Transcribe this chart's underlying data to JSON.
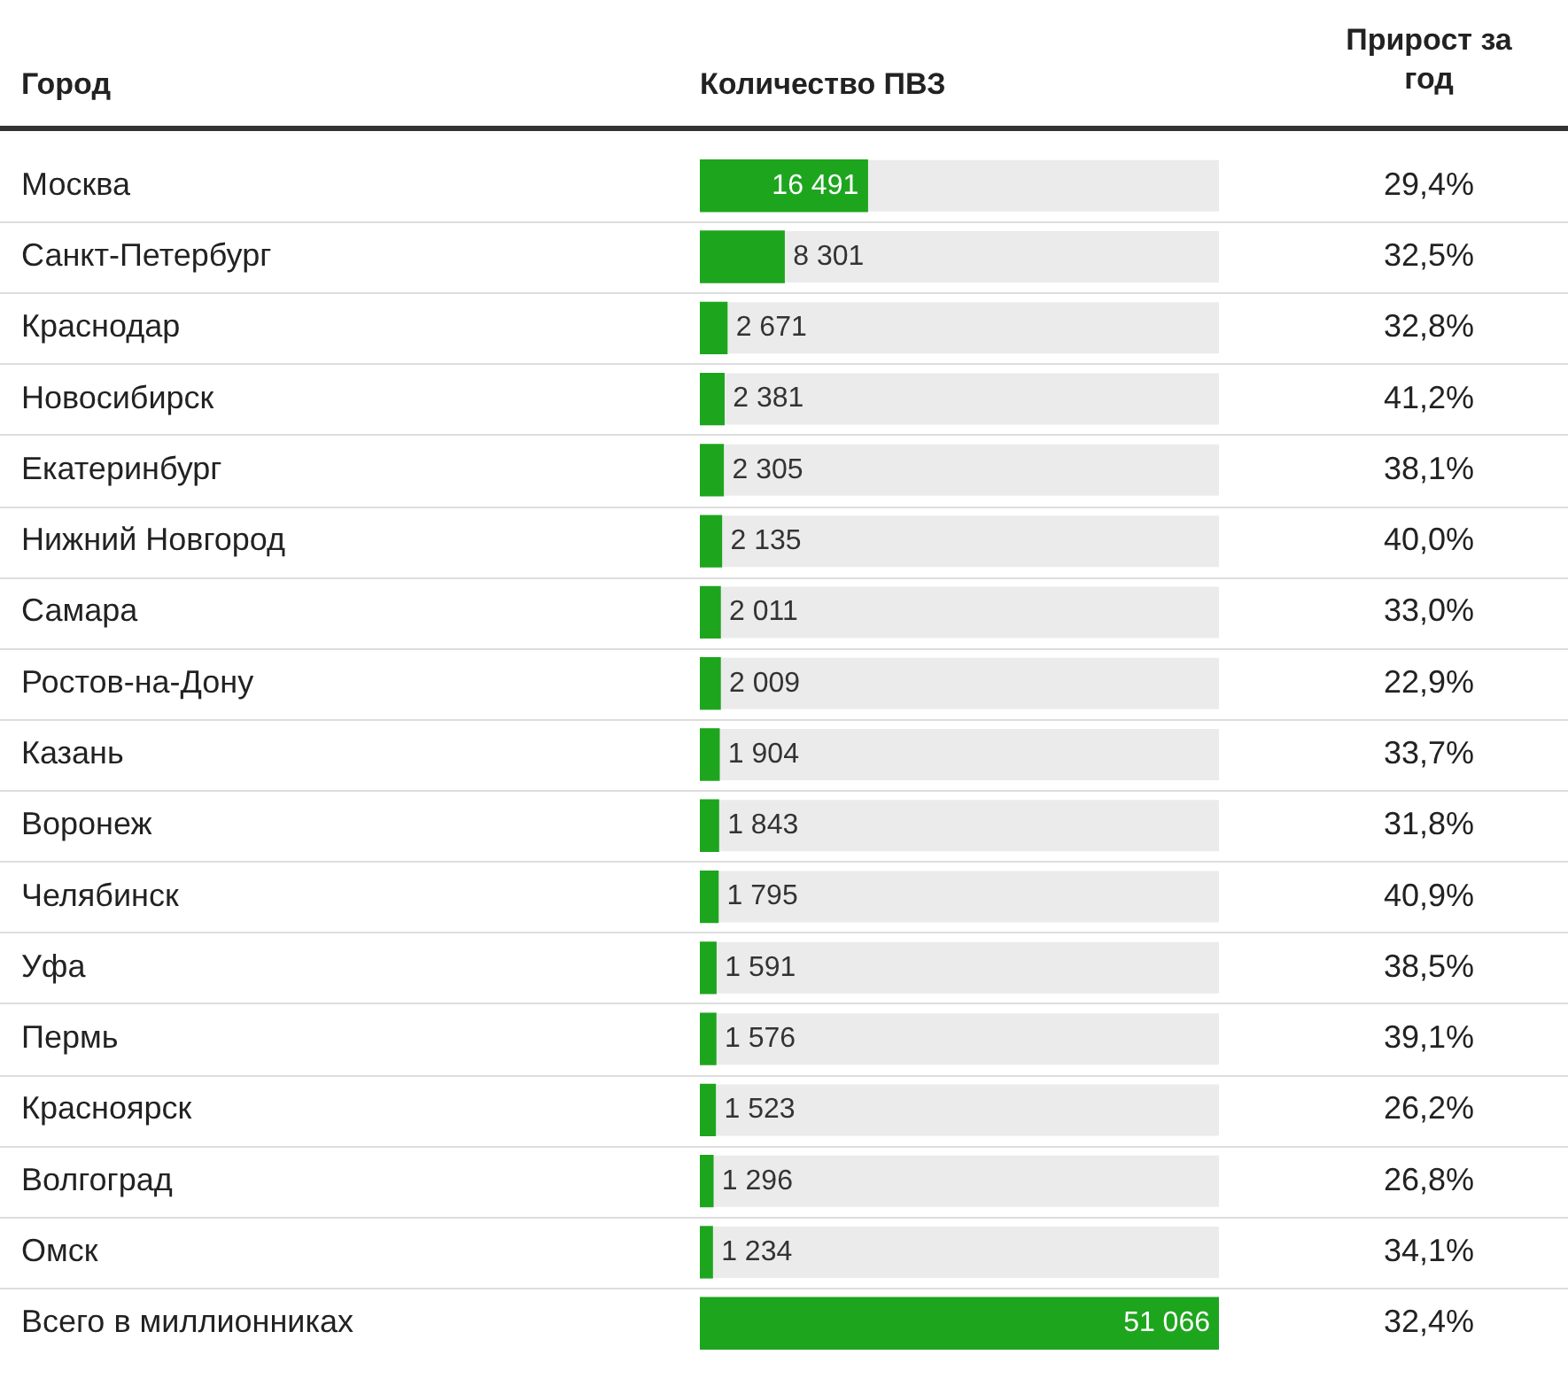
{
  "chart_data": [
    {
      "type": "bar",
      "orientation": "horizontal",
      "ylabel": "Город",
      "xlabel": "Количество ПВЗ",
      "categories": [
        "Москва",
        "Санкт-Петербург",
        "Краснодар",
        "Новосибирск",
        "Екатеринбург",
        "Нижний Новгород",
        "Самара",
        "Ростов-на-Дону",
        "Казань",
        "Воронеж",
        "Челябинск",
        "Уфа",
        "Пермь",
        "Красноярск",
        "Волгоград",
        "Омск",
        "Всего в миллионниках"
      ],
      "values": [
        16491,
        8301,
        2671,
        2381,
        2305,
        2135,
        2011,
        2009,
        1904,
        1843,
        1795,
        1591,
        1576,
        1523,
        1296,
        1234,
        51066
      ],
      "value_labels": [
        "16 491",
        "8 301",
        "2 671",
        "2 381",
        "2 305",
        "2 135",
        "2 011",
        "2 009",
        "1 904",
        "1 843",
        "1 795",
        "1 591",
        "1 576",
        "1 523",
        "1 296",
        "1 234",
        "51 066"
      ],
      "color": "#1ea51e",
      "xlim": [
        0,
        51066
      ],
      "tick_labels": "y",
      "grid": "y"
    },
    {
      "type": "other",
      "title": "Прирост за год",
      "annotations": [
        "29,4%",
        "32,5%",
        "32,8%",
        "41,2%",
        "38,1%",
        "40,0%",
        "33,0%",
        "22,9%",
        "33,7%",
        "31,8%",
        "40,9%",
        "38,5%",
        "39,1%",
        "26,2%",
        "26,8%",
        "34,1%",
        "32,4%"
      ]
    }
  ]
}
